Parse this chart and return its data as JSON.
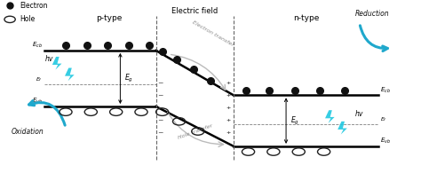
{
  "bg_color": "#ffffff",
  "p_type_label": "p-type",
  "n_type_label": "n-type",
  "electric_field_label": "Electric field",
  "electron_label": "Electron",
  "hole_label": "Hole",
  "colors": {
    "band": "#000000",
    "electron": "#111111",
    "hole_edge": "#222222",
    "dashed_line": "#666666",
    "plus_minus": "#555555",
    "cyan_arrow": "#1fa8cc",
    "lightning": "#1ec8e0",
    "transfer_curve": "#bbbbbb",
    "text_dark": "#111111",
    "label_italic": "#222222"
  },
  "p_Ecb": 5.2,
  "p_Ef": 3.85,
  "p_Evb": 2.95,
  "n_Ecb": 3.4,
  "n_Ef": 2.25,
  "n_Evb": 1.35,
  "p_x0": 1.05,
  "p_x1": 3.7,
  "junc_x0": 3.7,
  "junc_x1": 5.55,
  "n_x0": 5.55,
  "n_x1": 9.0,
  "xlim": [
    0,
    10
  ],
  "ylim": [
    0.3,
    7.2
  ]
}
